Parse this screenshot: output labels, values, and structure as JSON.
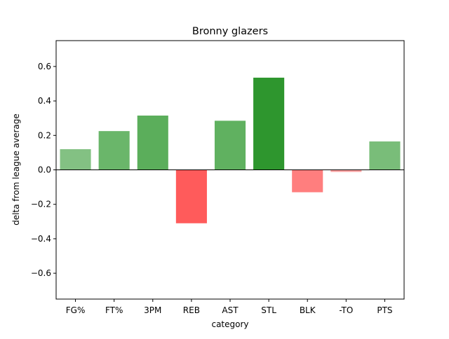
{
  "chart_data": {
    "type": "bar",
    "title": "Bronny glazers",
    "xlabel": "category",
    "ylabel": "delta from league average",
    "categories": [
      "FG%",
      "FT%",
      "3PM",
      "REB",
      "AST",
      "STL",
      "BLK",
      "-TO",
      "PTS"
    ],
    "values": [
      0.12,
      0.225,
      0.315,
      -0.31,
      0.285,
      0.535,
      -0.13,
      -0.012,
      0.165
    ],
    "bar_colors": [
      "#83c183",
      "#6ab66a",
      "#5bae5b",
      "#ff5b5b",
      "#60b160",
      "#2e962e",
      "#ff7e7e",
      "#ffa0a0",
      "#79bd79"
    ],
    "ylim": [
      -0.75,
      0.75
    ],
    "yticks": [
      -0.6,
      -0.4,
      -0.2,
      0.0,
      0.2,
      0.4,
      0.6
    ],
    "ytick_labels": [
      "−0.6",
      "−0.4",
      "−0.2",
      "0.0",
      "0.2",
      "0.4",
      "0.6"
    ],
    "zero_line": true,
    "grid": false,
    "legend": "none"
  }
}
